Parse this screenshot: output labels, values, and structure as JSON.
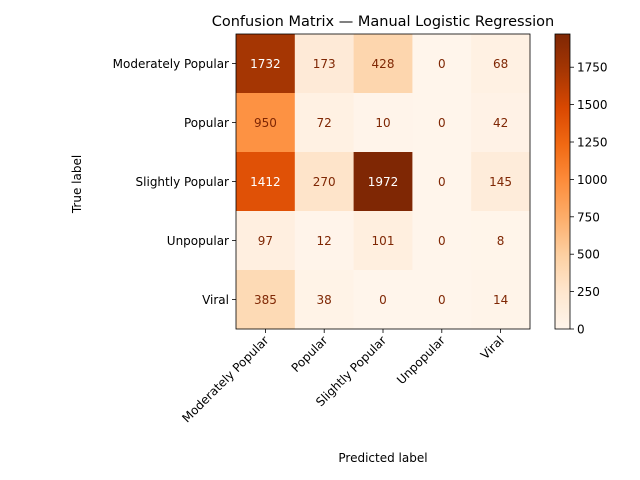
{
  "chart_data": {
    "type": "heatmap",
    "title": "Confusion Matrix — Manual Logistic Regression",
    "xlabel": "Predicted label",
    "ylabel": "True label",
    "x_categories": [
      "Moderately Popular",
      "Popular",
      "Slightly Popular",
      "Unpopular",
      "Viral"
    ],
    "y_categories": [
      "Moderately Popular",
      "Popular",
      "Slightly Popular",
      "Unpopular",
      "Viral"
    ],
    "values": [
      [
        1732,
        173,
        428,
        0,
        68
      ],
      [
        950,
        72,
        10,
        0,
        42
      ],
      [
        1412,
        270,
        1972,
        0,
        145
      ],
      [
        97,
        12,
        101,
        0,
        8
      ],
      [
        385,
        38,
        0,
        0,
        14
      ]
    ],
    "colormap": "Oranges",
    "color_range": [
      0,
      1972
    ],
    "colorbar_ticks": [
      0,
      250,
      500,
      750,
      1000,
      1250,
      1500,
      1750
    ]
  }
}
